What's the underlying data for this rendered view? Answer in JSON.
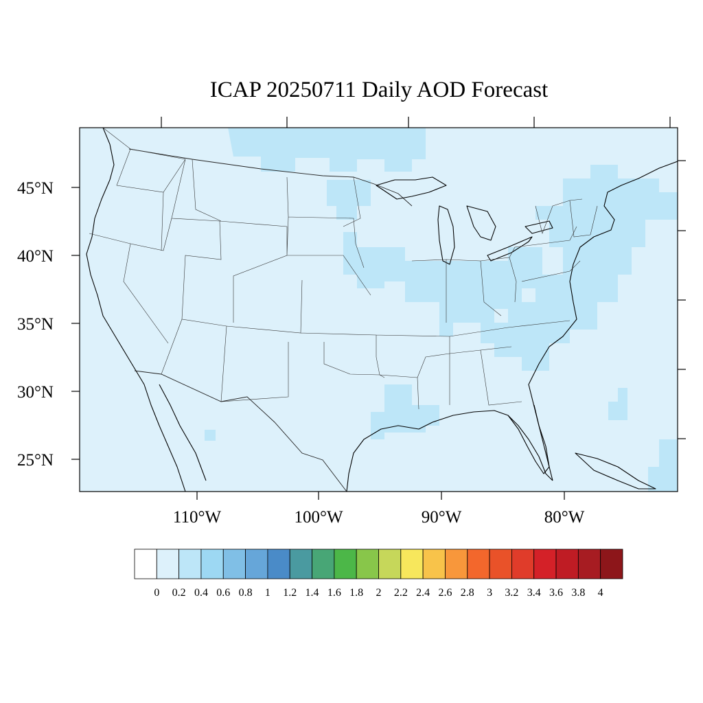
{
  "title": "ICAP 20250711 Daily AOD Forecast",
  "lat_labels": [
    "45°N",
    "40°N",
    "35°N",
    "30°N",
    "25°N"
  ],
  "lon_labels": [
    "110°W",
    "100°W",
    "90°W",
    "80°W"
  ],
  "colorbar": {
    "labels": [
      "0",
      "0.2",
      "0.4",
      "0.6",
      "0.8",
      "1",
      "1.2",
      "1.4",
      "1.6",
      "1.8",
      "2",
      "2.2",
      "2.4",
      "2.6",
      "2.8",
      "3",
      "3.2",
      "3.4",
      "3.6",
      "3.8",
      "4"
    ],
    "colors": [
      "#ffffff",
      "#ddf1fb",
      "#bde6f8",
      "#9dd8f3",
      "#80bfe6",
      "#66a6d9",
      "#4a8bc8",
      "#4a9aa0",
      "#48a676",
      "#4cb748",
      "#88c64a",
      "#c6d75a",
      "#f7e75c",
      "#f8c34a",
      "#f8973b",
      "#f3672c",
      "#e95229",
      "#e03c2a",
      "#d42128",
      "#bf1c24",
      "#a71c22",
      "#8d161a"
    ]
  },
  "map": {
    "background_aod": "0-0.2",
    "elevated_aod_regions": [
      "Canada north of Great Lakes",
      "North Dakota / Minnesota",
      "Iowa / Illinois",
      "Ohio Valley",
      "Mid-Atlantic and Northeast",
      "Southeast",
      "Louisiana coast",
      "Atlantic offshore"
    ]
  }
}
